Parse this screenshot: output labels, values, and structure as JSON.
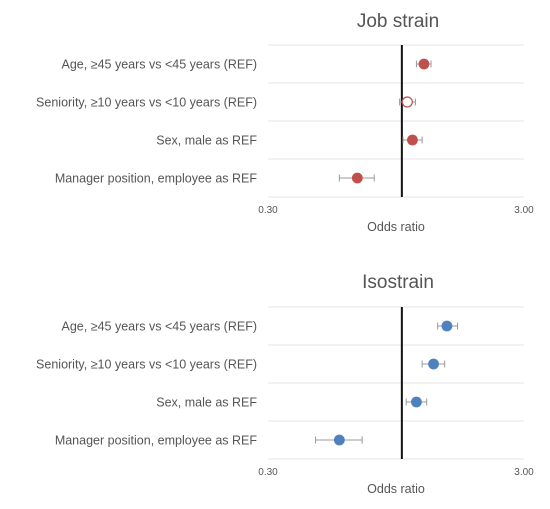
{
  "chart_data": [
    {
      "type": "forest",
      "title": "Job strain",
      "xlabel": "Odds ratio",
      "scale": "log",
      "xlim": [
        0.3,
        3.0
      ],
      "xticks": [
        "0.30",
        "3.00"
      ],
      "reference_line": 1.0,
      "grid": "horizontal",
      "color": "#c0504d",
      "rows": [
        {
          "label": "Age, ≥45 years vs <45 years (REF)",
          "or": 1.22,
          "lower": 1.14,
          "upper": 1.3,
          "marker": "filled"
        },
        {
          "label": "Seniority, ≥10 years vs <10 years (REF)",
          "or": 1.05,
          "lower": 0.98,
          "upper": 1.13,
          "marker": "open"
        },
        {
          "label": "Sex, male as REF",
          "or": 1.1,
          "lower": 1.01,
          "upper": 1.2,
          "marker": "filled"
        },
        {
          "label": "Manager position, employee as REF",
          "or": 0.67,
          "lower": 0.57,
          "upper": 0.78,
          "marker": "filled"
        }
      ]
    },
    {
      "type": "forest",
      "title": "Isostrain",
      "xlabel": "Odds ratio",
      "scale": "log",
      "xlim": [
        0.3,
        3.0
      ],
      "xticks": [
        "0.30",
        "3.00"
      ],
      "reference_line": 1.0,
      "grid": "horizontal",
      "color": "#4f81bd",
      "rows": [
        {
          "label": "Age, ≥45 years vs <45 years (REF)",
          "or": 1.5,
          "lower": 1.38,
          "upper": 1.65,
          "marker": "filled"
        },
        {
          "label": "Seniority, ≥10 years vs <10 years (REF)",
          "or": 1.33,
          "lower": 1.2,
          "upper": 1.47,
          "marker": "filled"
        },
        {
          "label": "Sex, male as REF",
          "or": 1.14,
          "lower": 1.04,
          "upper": 1.25,
          "marker": "filled"
        },
        {
          "label": "Manager position, employee as REF",
          "or": 0.57,
          "lower": 0.46,
          "upper": 0.7,
          "marker": "filled"
        }
      ]
    }
  ]
}
